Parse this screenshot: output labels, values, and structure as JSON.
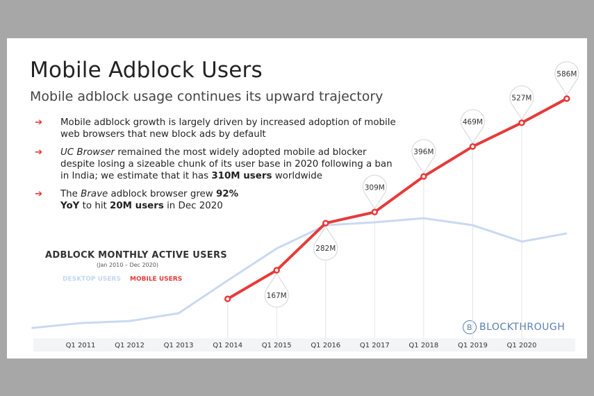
{
  "header": {
    "title": "Mobile Adblock Users",
    "subtitle": "Mobile adblock usage continues its upward trajectory"
  },
  "bullets": [
    {
      "icon": "arrow-right-icon",
      "text": "Mobile adblock growth is largely driven by increased adoption of mobile web browsers that new block ads by default"
    },
    {
      "icon": "arrow-right-icon",
      "italic": "UC Browser",
      "pre": " remained the most widely adopted mobile ad blocker despite losing a sizeable chunk of its user base in 2020 following a ban in India; we estimate that it has ",
      "bold": "310M users",
      "post": " worldwide"
    },
    {
      "icon": "arrow-right-icon",
      "a": "The ",
      "italic": "Brave",
      "b": " adblock browser grew ",
      "bold1": "92% YoY",
      "c": " to hit ",
      "bold2": "20M users",
      "d": " in Dec 2020"
    }
  ],
  "logo": {
    "text": "BLOCKTHROUGH",
    "mark": "B"
  },
  "colors": {
    "mobile": "#e63a3a",
    "desktop": "#c9d9f2",
    "axis_band": "#f3f4f6"
  },
  "chart_data": {
    "type": "line",
    "title": "ADBLOCK MONTHLY ACTIVE USERS",
    "subtitle": "(Jan 2010 – Dec 2020)",
    "x_ticks": [
      "Q1 2011",
      "Q1 2012",
      "Q1 2013",
      "Q1 2014",
      "Q1 2015",
      "Q1 2016",
      "Q1 2017",
      "Q1 2018",
      "Q1 2019",
      "Q1 2020"
    ],
    "legend": [
      "DESKTOP USERS",
      "MOBILE USERS"
    ],
    "units": "M",
    "series": [
      {
        "name": "DESKTOP USERS",
        "x": [
          2010.0,
          2011.0,
          2012.0,
          2013.0,
          2014.0,
          2015.0,
          2016.0,
          2017.0,
          2018.0,
          2019.0,
          2020.0,
          2020.92
        ],
        "y": [
          26,
          38,
          43,
          62,
          142,
          220,
          277,
          284,
          294,
          277,
          237,
          257
        ]
      },
      {
        "name": "MOBILE USERS",
        "x": [
          2014.0,
          2015.0,
          2016.0,
          2017.0,
          2018.0,
          2019.0,
          2020.0,
          2020.92
        ],
        "y": [
          97,
          167,
          282,
          309,
          396,
          469,
          527,
          586
        ],
        "labels": [
          "",
          "167M",
          "282M",
          "309M",
          "396M",
          "469M",
          "527M",
          "586M"
        ],
        "label_below": [
          false,
          true,
          true,
          false,
          false,
          false,
          false,
          false
        ]
      }
    ]
  }
}
